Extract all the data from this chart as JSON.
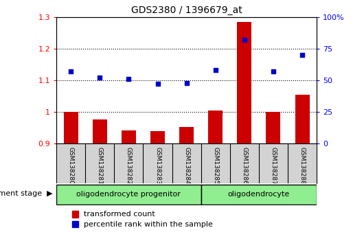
{
  "title": "GDS2380 / 1396679_at",
  "samples": [
    "GSM138280",
    "GSM138281",
    "GSM138282",
    "GSM138283",
    "GSM138284",
    "GSM138285",
    "GSM138286",
    "GSM138287",
    "GSM138288"
  ],
  "transformed_count": [
    1.0,
    0.975,
    0.94,
    0.938,
    0.952,
    1.005,
    1.285,
    1.0,
    1.055
  ],
  "percentile_rank": [
    57,
    52,
    51,
    47,
    48,
    58,
    82,
    57,
    70
  ],
  "ylim_left": [
    0.9,
    1.3
  ],
  "ylim_right": [
    0,
    100
  ],
  "yticks_left": [
    0.9,
    1.0,
    1.1,
    1.2,
    1.3
  ],
  "ytick_labels_left": [
    "0.9",
    "1",
    "1.1",
    "1.2",
    "1.3"
  ],
  "yticks_right": [
    0,
    25,
    50,
    75,
    100
  ],
  "ytick_labels_right": [
    "0",
    "25",
    "50",
    "75",
    "100%"
  ],
  "groups": [
    {
      "label": "oligodendrocyte progenitor",
      "start": 0,
      "end": 5,
      "color": "#90EE90"
    },
    {
      "label": "oligodendrocyte",
      "start": 5,
      "end": 9,
      "color": "#90EE90"
    }
  ],
  "bar_color": "#CC0000",
  "dot_color": "#0000CC",
  "bar_width": 0.5,
  "dev_stage_label": "development stage",
  "legend_items": [
    {
      "label": "transformed count",
      "color": "#CC0000"
    },
    {
      "label": "percentile rank within the sample",
      "color": "#0000CC"
    }
  ],
  "background_color": "#ffffff",
  "plot_bg_color": "#ffffff",
  "tick_area_bg": "#d3d3d3"
}
